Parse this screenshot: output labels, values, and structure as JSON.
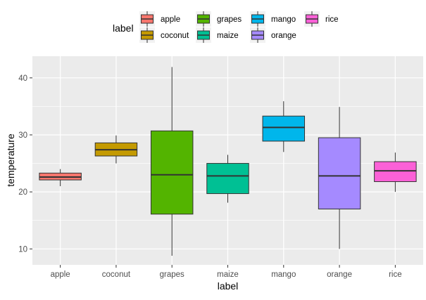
{
  "chart_data": {
    "type": "boxplot",
    "xlabel": "label",
    "ylabel": "temperature",
    "ylim": [
      7.2,
      43.8
    ],
    "yticks": [
      10,
      20,
      30,
      40
    ],
    "grid": true,
    "legend": {
      "title": "label",
      "placement": "top",
      "entries": [
        "apple",
        "coconut",
        "grapes",
        "maize",
        "mango",
        "orange",
        "rice"
      ]
    },
    "categories": [
      "apple",
      "coconut",
      "grapes",
      "maize",
      "mango",
      "orange",
      "rice"
    ],
    "colors": {
      "apple": "#F8766D",
      "coconut": "#C49A00",
      "grapes": "#53B400",
      "maize": "#00C094",
      "mango": "#00B6EB",
      "orange": "#A58AFF",
      "rice": "#FB61D7"
    },
    "boxes": [
      {
        "label": "apple",
        "min": 21.0,
        "q1": 22.1,
        "median": 22.6,
        "q3": 23.3,
        "max": 24.0
      },
      {
        "label": "coconut",
        "min": 25.0,
        "q1": 26.3,
        "median": 27.4,
        "q3": 28.6,
        "max": 29.9
      },
      {
        "label": "grapes",
        "min": 8.8,
        "q1": 16.1,
        "median": 23.0,
        "q3": 30.7,
        "max": 41.9
      },
      {
        "label": "maize",
        "min": 18.1,
        "q1": 19.7,
        "median": 22.8,
        "q3": 25.0,
        "max": 26.5
      },
      {
        "label": "mango",
        "min": 27.0,
        "q1": 28.9,
        "median": 31.3,
        "q3": 33.3,
        "max": 35.9
      },
      {
        "label": "orange",
        "min": 10.0,
        "q1": 17.0,
        "median": 22.8,
        "q3": 29.5,
        "max": 34.9
      },
      {
        "label": "rice",
        "min": 20.0,
        "q1": 21.8,
        "median": 23.7,
        "q3": 25.3,
        "max": 26.9
      }
    ]
  }
}
